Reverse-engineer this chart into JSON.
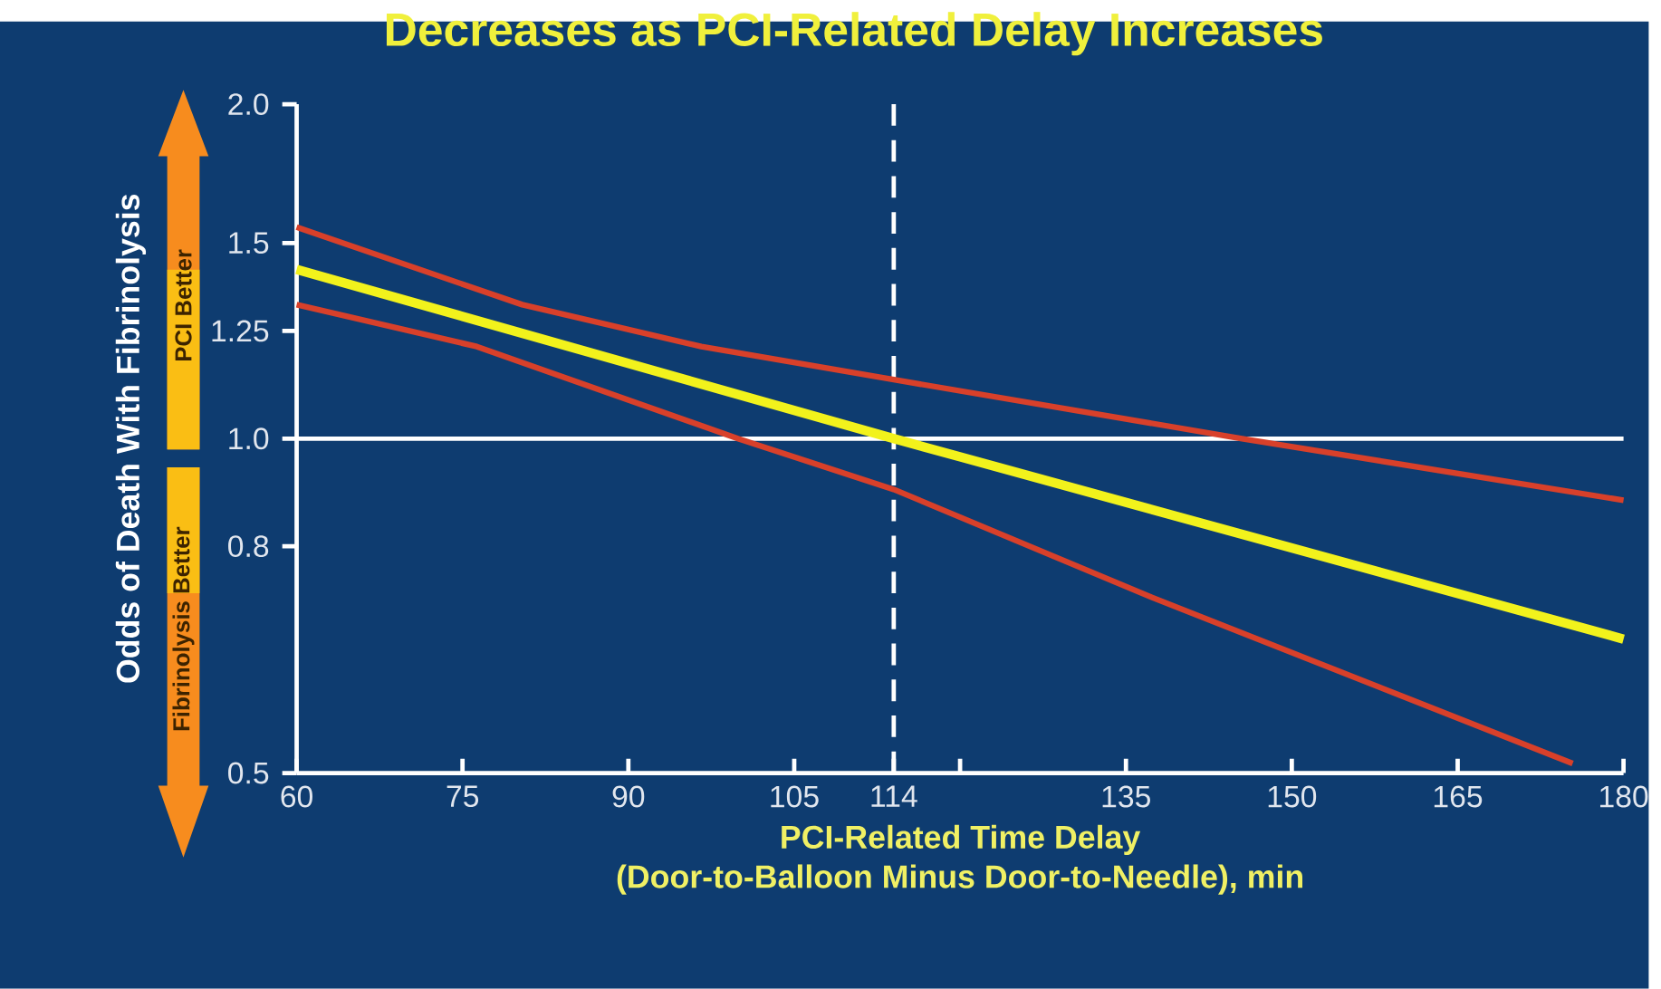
{
  "chart_data": {
    "type": "line",
    "title": "Decreases as PCI-Related Delay Increases",
    "xlabel": "PCI-Related Time Delay\n(Door-to-Balloon Minus Door-to-Needle), min",
    "ylabel": "Odds of Death With Fibrinolysis",
    "annotations": [
      "PCI Better",
      "Fibrinolysis Better"
    ],
    "log": "y",
    "xlim": [
      60,
      180
    ],
    "ylim": [
      0.5,
      2.0
    ],
    "xticks": [
      60,
      75,
      90,
      105,
      114,
      {
        "value": 120,
        "label": null
      },
      135,
      150,
      165,
      180
    ],
    "yticks": [
      0.5,
      0.8,
      {
        "value": 1.0,
        "label": "1.0"
      },
      1.25,
      1.5,
      {
        "value": 2.0,
        "label": "2.0"
      }
    ],
    "grid": false,
    "marker": "none",
    "line_style": "solid",
    "series": [
      {
        "color": "#d8402a",
        "x": [
          60,
          80.4,
          96.6,
          114,
          145.5,
          180
        ],
        "values": [
          1.55,
          1.32,
          1.21,
          1.13,
          1.0,
          0.88
        ]
      },
      {
        "color": "#f2f21c",
        "x": [
          60,
          114,
          180
        ],
        "values": [
          1.42,
          1.0,
          0.66
        ]
      },
      {
        "color": "#d8402a",
        "x": [
          60,
          76.3,
          99.9,
          114,
          137.3,
          175.4
        ],
        "values": [
          1.32,
          1.21,
          1.0,
          0.9,
          0.72,
          0.51
        ]
      }
    ],
    "ref_lines": [
      {
        "axis": "y",
        "value": 1.0,
        "color": "#ffffff",
        "line_style": "solid"
      },
      {
        "axis": "x",
        "value": 114,
        "color": "#ffffff",
        "line_style": "dashed"
      }
    ]
  }
}
